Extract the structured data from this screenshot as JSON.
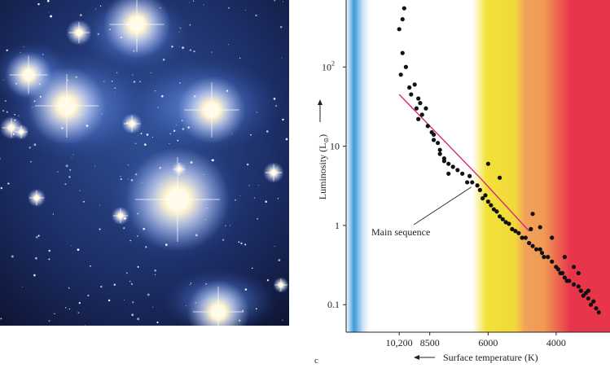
{
  "panel_label": "c",
  "chart_data": {
    "type": "scatter",
    "title": "",
    "xlabel": "Surface temperature (K)",
    "ylabel": "Luminosity (L",
    "ylabel_symbol": "⊙",
    "x_scale": "log-reversed",
    "y_scale": "log",
    "xlim": [
      14000,
      2900
    ],
    "ylim": [
      0.045,
      700
    ],
    "x_ticks": [
      {
        "value": 10200,
        "label": "10,200"
      },
      {
        "value": 8500,
        "label": "8500"
      },
      {
        "value": 6000,
        "label": "6000"
      },
      {
        "value": 4000,
        "label": "4000"
      }
    ],
    "y_ticks": [
      {
        "value": 0.1,
        "label": "0.1",
        "exp": ""
      },
      {
        "value": 1,
        "label": "1",
        "exp": ""
      },
      {
        "value": 10,
        "label": "10",
        "exp": ""
      },
      {
        "value": 100,
        "label": "10",
        "exp": "2"
      }
    ],
    "annotation": {
      "text": "Main sequence",
      "x": 6600,
      "y": 3.2
    },
    "main_sequence_line": {
      "x": [
        10200,
        6300,
        4700
      ],
      "y": [
        45,
        4,
        0.85
      ]
    },
    "background_bands": [
      {
        "name": "blue",
        "color": "#3a9ad9"
      },
      {
        "name": "white",
        "color": "#ffffff"
      },
      {
        "name": "yellow",
        "color": "#f2e23a"
      },
      {
        "name": "orange",
        "color": "#f2a05a"
      },
      {
        "name": "red",
        "color": "#e8354a"
      }
    ],
    "points": {
      "x": [
        10200,
        9900,
        10000,
        10000,
        9800,
        9600,
        10100,
        9300,
        9100,
        9500,
        9000,
        8700,
        9200,
        8900,
        9100,
        8600,
        8400,
        8300,
        8100,
        8000,
        8300,
        8000,
        7800,
        7600,
        7400,
        7200,
        7800,
        7600,
        7000,
        6800,
        6600,
        6400,
        6700,
        6300,
        6100,
        6200,
        6000,
        5900,
        5800,
        5700,
        5600,
        5500,
        5400,
        5300,
        5200,
        5100,
        5000,
        4900,
        4800,
        4700,
        4650,
        4600,
        4500,
        4400,
        4350,
        4300,
        4200,
        4100,
        4000,
        3950,
        3900,
        3850,
        3800,
        3750,
        3700,
        3600,
        3500,
        3450,
        3400,
        3350,
        3300,
        3300,
        3250,
        3200,
        3150,
        3100,
        6000,
        5600,
        4600,
        4400,
        4100,
        3800,
        3600,
        3500
      ],
      "y": [
        300,
        550,
        400,
        150,
        100,
        55,
        80,
        60,
        40,
        45,
        35,
        30,
        30,
        25,
        22,
        18,
        15,
        12,
        11,
        9,
        14,
        8,
        7,
        6,
        5.5,
        5,
        6.5,
        4.5,
        4.5,
        3.5,
        3.5,
        3.2,
        4.2,
        2.8,
        2.4,
        2.2,
        2,
        1.8,
        1.6,
        1.5,
        1.3,
        1.2,
        1.1,
        1.05,
        0.9,
        0.85,
        0.8,
        0.7,
        0.7,
        0.6,
        0.9,
        0.55,
        0.5,
        0.5,
        0.45,
        0.4,
        0.4,
        0.35,
        0.3,
        0.28,
        0.25,
        0.25,
        0.22,
        0.2,
        0.2,
        0.18,
        0.17,
        0.15,
        0.13,
        0.14,
        0.12,
        0.15,
        0.1,
        0.11,
        0.09,
        0.08,
        6,
        4,
        1.4,
        0.95,
        0.7,
        0.4,
        0.3,
        0.25
      ]
    }
  }
}
